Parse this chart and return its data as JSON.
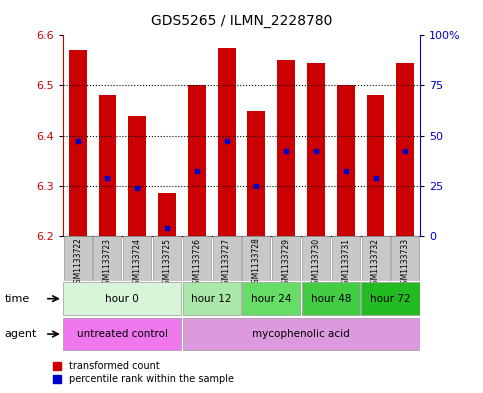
{
  "title": "GDS5265 / ILMN_2228780",
  "samples": [
    "GSM1133722",
    "GSM1133723",
    "GSM1133724",
    "GSM1133725",
    "GSM1133726",
    "GSM1133727",
    "GSM1133728",
    "GSM1133729",
    "GSM1133730",
    "GSM1133731",
    "GSM1133732",
    "GSM1133733"
  ],
  "bar_tops": [
    6.57,
    6.48,
    6.44,
    6.285,
    6.5,
    6.575,
    6.45,
    6.55,
    6.545,
    6.5,
    6.48,
    6.545
  ],
  "bar_bottoms": [
    6.2,
    6.2,
    6.2,
    6.2,
    6.2,
    6.2,
    6.2,
    6.2,
    6.2,
    6.2,
    6.2,
    6.2
  ],
  "blue_marks": [
    6.39,
    6.315,
    6.295,
    6.215,
    6.33,
    6.39,
    6.3,
    6.37,
    6.37,
    6.33,
    6.315,
    6.37
  ],
  "ylim": [
    6.2,
    6.6
  ],
  "yticks_left": [
    6.2,
    6.3,
    6.4,
    6.5,
    6.6
  ],
  "yticks_right_vals": [
    0,
    25,
    50,
    75,
    100
  ],
  "yticks_right_labels": [
    "0",
    "25",
    "50",
    "75",
    "100%"
  ],
  "bar_color": "#cc0000",
  "blue_color": "#0000cc",
  "time_groups": [
    {
      "label": "hour 0",
      "start": 0,
      "end": 4,
      "color": "#d9f5d9"
    },
    {
      "label": "hour 12",
      "start": 4,
      "end": 6,
      "color": "#aae8aa"
    },
    {
      "label": "hour 24",
      "start": 6,
      "end": 8,
      "color": "#66dd66"
    },
    {
      "label": "hour 48",
      "start": 8,
      "end": 10,
      "color": "#44cc44"
    },
    {
      "label": "hour 72",
      "start": 10,
      "end": 12,
      "color": "#22bb22"
    }
  ],
  "agent_groups": [
    {
      "label": "untreated control",
      "start": 0,
      "end": 4,
      "color": "#ee77ee"
    },
    {
      "label": "mycophenolic acid",
      "start": 4,
      "end": 12,
      "color": "#dd99dd"
    }
  ],
  "legend_red_label": "transformed count",
  "legend_blue_label": "percentile rank within the sample",
  "time_row_label": "time",
  "agent_row_label": "agent",
  "bg_color": "#ffffff",
  "plot_bg": "#ffffff",
  "axis_label_color_left": "#cc0000",
  "axis_label_color_right": "#0000cc",
  "sample_box_color": "#c8c8c8",
  "title_fontsize": 10,
  "tick_fontsize": 8,
  "row_fontsize": 8,
  "sample_fontsize": 5.5
}
